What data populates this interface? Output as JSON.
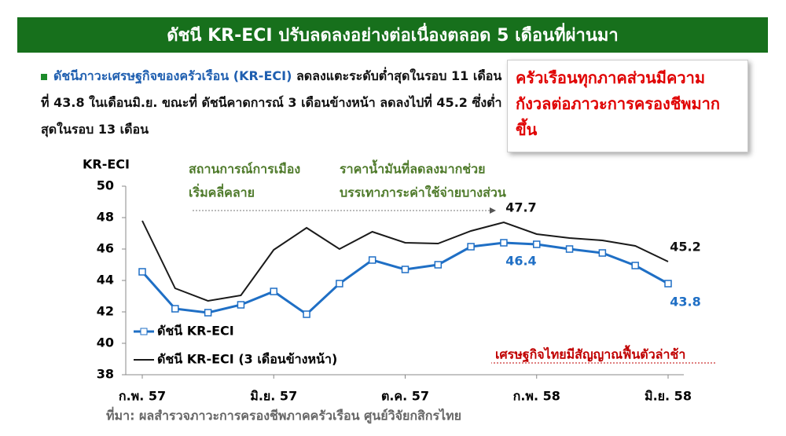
{
  "header": {
    "title": "ดัชนี KR-ECI ปรับลดลงอย่างต่อเนื่องตลอด 5 เดือนที่ผ่านมา"
  },
  "bullet": {
    "parts": [
      "ดัชนีภาวะเศรษฐกิจของครัวเรือน (KR-ECI)",
      " ลดลงแตะระดับต่ำสุดในรอบ 11 เดือน ที่ 43.8 ในเดือนมิ.ย. ขณะที่ ดัชนีคาดการณ์ 3 เดือนข้างหน้า ลดลงไปที่ 45.2 ซึ่งต่ำสุดในรอบ 13 เดือน"
    ]
  },
  "callout": {
    "text": "ครัวเรือนทุกภาคส่วนมีความกังวลต่อภาวะการครองชีพมากขึ้น"
  },
  "chart_data": {
    "type": "line",
    "y_label": "KR-ECI",
    "categories": [
      "ก.พ. 57",
      null,
      null,
      null,
      "มิ.ย. 57",
      null,
      null,
      null,
      "ต.ค. 57",
      null,
      null,
      null,
      "ก.พ. 58",
      null,
      null,
      null,
      "มิ.ย. 58"
    ],
    "series": [
      {
        "name": "ดัชนี KR-ECI",
        "color": "#1f6fc5",
        "marker": "square",
        "data_labels": [
          11,
          16
        ],
        "values": [
          44.55,
          42.2,
          41.95,
          42.45,
          43.3,
          41.85,
          43.8,
          45.3,
          44.7,
          45.0,
          46.15,
          46.4,
          46.3,
          46.0,
          45.75,
          44.95,
          43.8
        ]
      },
      {
        "name": "ดัชนี KR-ECI (3 เดือนข้างหน้า)",
        "color": "#1a1a1a",
        "data_labels": [
          11,
          16
        ],
        "values": [
          47.8,
          43.5,
          42.7,
          43.05,
          45.95,
          47.35,
          46.0,
          47.1,
          46.4,
          46.35,
          47.15,
          47.7,
          46.95,
          46.7,
          46.55,
          46.2,
          45.2
        ]
      }
    ],
    "ylim": [
      38,
      50
    ],
    "yticks": [
      38,
      40,
      42,
      44,
      46,
      48,
      50
    ],
    "legend": "lower left",
    "annotations": [
      {
        "lines": [
          "สถานการณ์การเมือง",
          "เริ่มคลี่คลาย"
        ],
        "color": "#4e7a2a"
      },
      {
        "lines": [
          "ราคาน้ำมันที่ลดลงมากช่วย",
          "บรรเทาภาระค่าใช้จ่ายบางส่วน"
        ],
        "color": "#4e7a2a"
      },
      {
        "lines": [
          "เศรษฐกิจไทยมีสัญญาณฟื้นตัวล่าช้า"
        ],
        "color": "#c00000"
      }
    ],
    "source": "ที่มา: ผลสำรวจภาวะการครองชีพภาคครัวเรือน ศูนย์วิจัยกสิกรไทย"
  }
}
